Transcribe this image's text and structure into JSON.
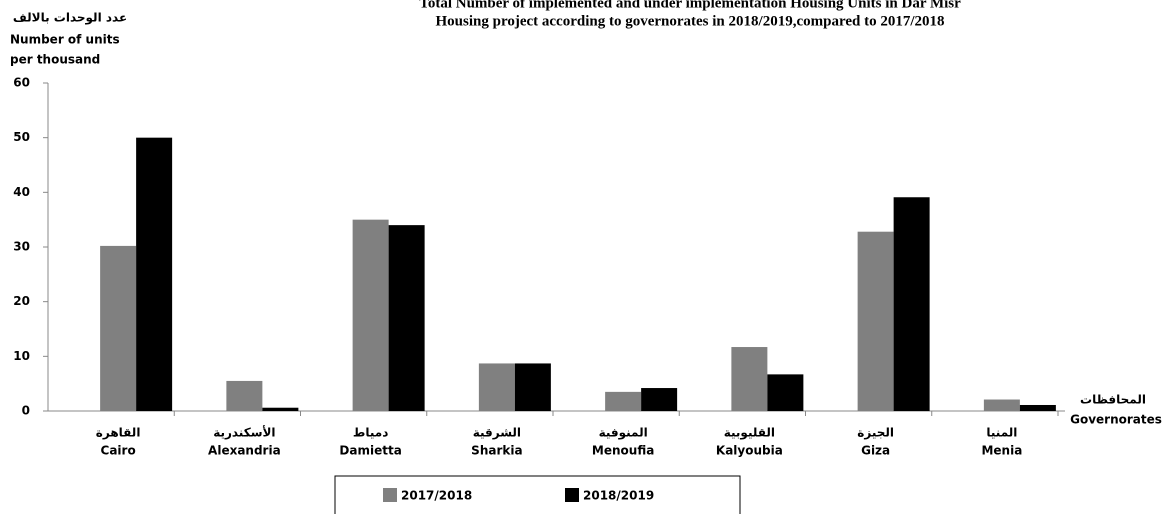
{
  "chart_data": {
    "type": "bar",
    "title": [
      "Total Number of implemented and under implementation Housing Units in Dar Misr",
      "Housing project  according to governorates in 2018/2019,compared to 2017/2018"
    ],
    "y_label": [
      "عدد الوحدات بالالف",
      "Number of units",
      "per thousand"
    ],
    "x_label": [
      "المحافظات",
      "Governorates"
    ],
    "categories_ar": [
      "القاهرة",
      "الأسكندرية",
      "دمياط",
      "الشرقية",
      "المنوفية",
      "القليوبية",
      "الجيزة",
      "المنيا"
    ],
    "categories": [
      "Cairo",
      "Alexandria",
      "Damietta",
      "Sharkia",
      "Menoufia",
      "Kalyoubia",
      "Giza",
      "Menia"
    ],
    "series": [
      {
        "name": "2017/2018",
        "color": "#808080",
        "values": [
          30.2,
          5.5,
          35,
          8.7,
          3.5,
          11.7,
          32.8,
          2.1
        ]
      },
      {
        "name": "2018/2019",
        "color": "#000000",
        "values": [
          50,
          0.6,
          34,
          8.7,
          4.2,
          6.7,
          39.1,
          1.1
        ]
      }
    ],
    "ylim": [
      0,
      60
    ],
    "yticks": [
      0,
      10,
      20,
      30,
      40,
      50,
      60
    ],
    "grid": false,
    "legend": "bottom"
  }
}
